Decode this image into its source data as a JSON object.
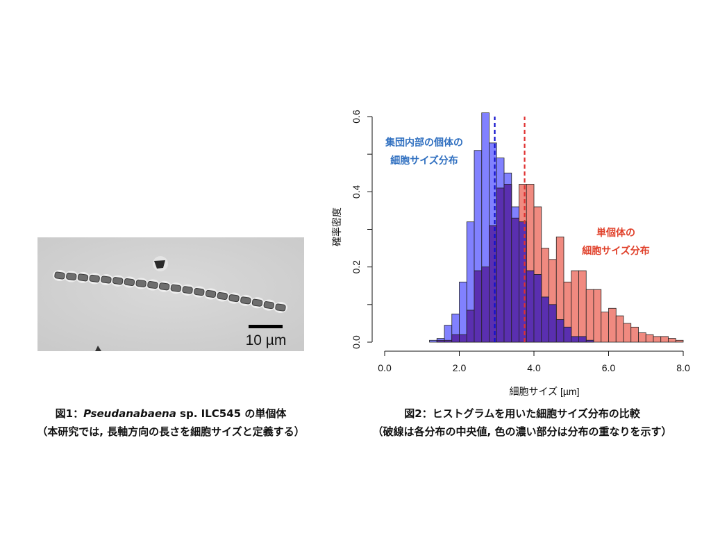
{
  "figure1": {
    "scale_bar_label": "10 µm",
    "caption_line1_prefix": "図1：",
    "caption_line1_italic": "Pseudanabaena",
    "caption_line1_suffix": " sp. ILC545 の単個体",
    "caption_line2": "（本研究では, 長軸方向の長さを細胞サイズと定義する）"
  },
  "figure2": {
    "caption_line1": "図2：ヒストグラムを用いた細胞サイズ分布の比較",
    "caption_line2": "（破線は各分布の中央値, 色の濃い部分は分布の重なりを示す）"
  },
  "chart_data": {
    "type": "bar",
    "subtype": "overlapping histogram",
    "xlabel": "細胞サイズ [µm]",
    "ylabel": "確率密度",
    "xlim": [
      0,
      8
    ],
    "ylim": [
      0,
      0.6
    ],
    "xticks": [
      0,
      2,
      4,
      6,
      8
    ],
    "xtick_labels": [
      "0.0",
      "2.0",
      "4.0",
      "6.0",
      "8.0"
    ],
    "yticks": [
      0,
      0.2,
      0.4,
      0.6
    ],
    "ytick_labels": [
      "0.0",
      "0.2",
      "0.4",
      "0.6"
    ],
    "grid": false,
    "bin_width": 0.2,
    "series": [
      {
        "label_line1": "集団内部の個体の",
        "label_line2": "細胞サイズ分布",
        "color": "#6b6bff",
        "median": 2.95,
        "median_color": "#1010cc",
        "bins_start": [
          1.2,
          1.4,
          1.6,
          1.8,
          2.0,
          2.2,
          2.4,
          2.6,
          2.8,
          3.0,
          3.2,
          3.4,
          3.6,
          3.8,
          4.0,
          4.2,
          4.4,
          4.6,
          4.8,
          5.0,
          5.2,
          5.4
        ],
        "values": [
          0.005,
          0.01,
          0.045,
          0.075,
          0.16,
          0.32,
          0.51,
          0.61,
          0.53,
          0.49,
          0.45,
          0.36,
          0.32,
          0.19,
          0.18,
          0.12,
          0.1,
          0.06,
          0.04,
          0.015,
          0.015,
          0.005
        ]
      },
      {
        "label_line1": "単個体の",
        "label_line2": "細胞サイズ分布",
        "color": "#f08a80",
        "median": 3.75,
        "median_color": "#e03030",
        "bins_start": [
          1.4,
          1.6,
          1.8,
          2.0,
          2.2,
          2.4,
          2.6,
          2.8,
          3.0,
          3.2,
          3.4,
          3.6,
          3.8,
          4.0,
          4.2,
          4.4,
          4.6,
          4.8,
          5.0,
          5.2,
          5.4,
          5.6,
          5.8,
          6.0,
          6.2,
          6.4,
          6.6,
          6.8,
          7.0,
          7.2,
          7.4,
          7.6,
          7.8
        ],
        "values": [
          0.005,
          0.005,
          0.02,
          0.02,
          0.085,
          0.19,
          0.2,
          0.31,
          0.41,
          0.42,
          0.33,
          0.42,
          0.42,
          0.36,
          0.25,
          0.22,
          0.28,
          0.16,
          0.19,
          0.19,
          0.14,
          0.14,
          0.08,
          0.09,
          0.07,
          0.05,
          0.04,
          0.025,
          0.02,
          0.015,
          0.015,
          0.01,
          0.005
        ]
      }
    ]
  }
}
